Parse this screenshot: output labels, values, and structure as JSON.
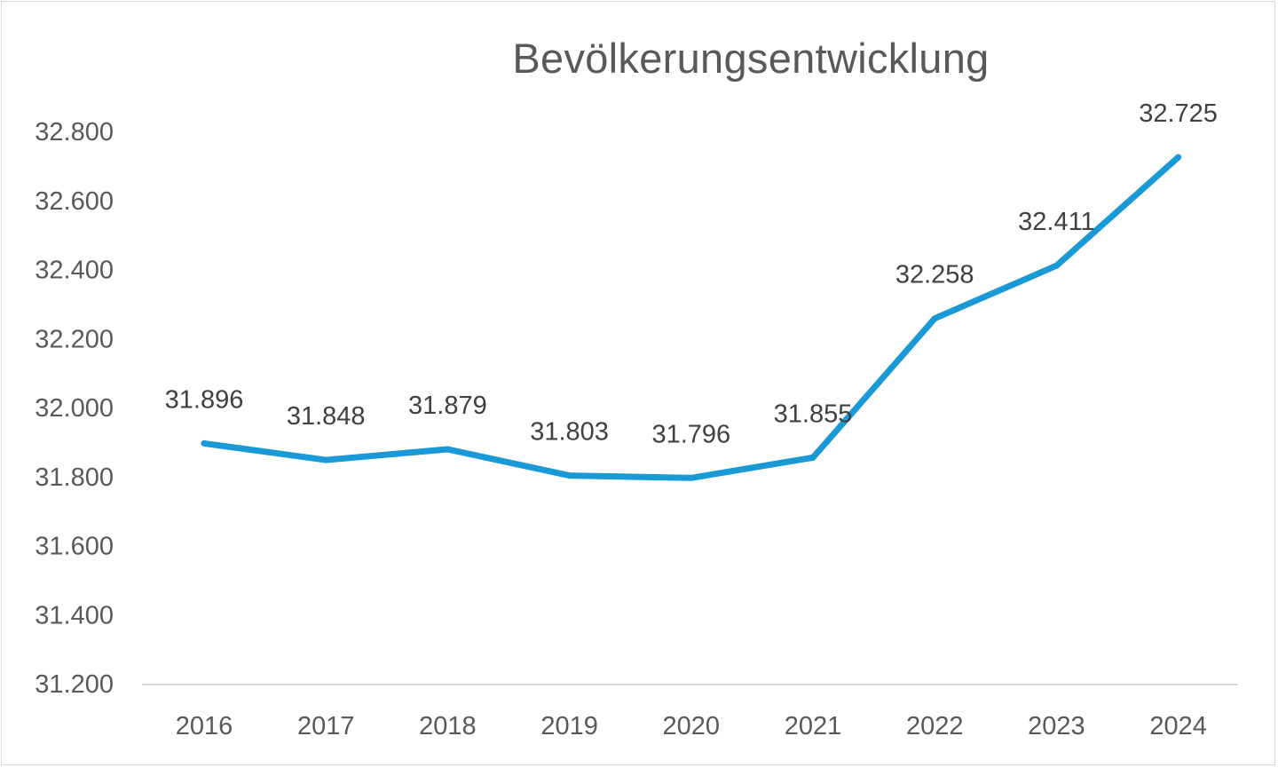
{
  "chart_data": {
    "type": "line",
    "title": "Bevölkerungsentwicklung",
    "xlabel": "",
    "ylabel": "",
    "categories": [
      "2016",
      "2017",
      "2018",
      "2019",
      "2020",
      "2021",
      "2022",
      "2023",
      "2024"
    ],
    "series": [
      {
        "values": [
          31896,
          31848,
          31879,
          31803,
          31796,
          31855,
          32258,
          32411,
          32725
        ],
        "data_labels": [
          "31.896",
          "31.848",
          "31.879",
          "31.803",
          "31.796",
          "31.855",
          "32.258",
          "32.411",
          "32.725"
        ],
        "color": "#199ad6"
      }
    ],
    "ylim": [
      31200,
      32800
    ],
    "yticks": [
      31200,
      31400,
      31600,
      31800,
      32000,
      32200,
      32400,
      32600,
      32800
    ],
    "ytick_labels": [
      "31.200",
      "31.400",
      "31.600",
      "31.800",
      "32.000",
      "32.200",
      "32.400",
      "32.600",
      "32.800"
    ],
    "grid": false,
    "legend": "none",
    "colors": {
      "line": "#199ad6",
      "axis": "#d9d9d9",
      "text": "#595959"
    }
  }
}
